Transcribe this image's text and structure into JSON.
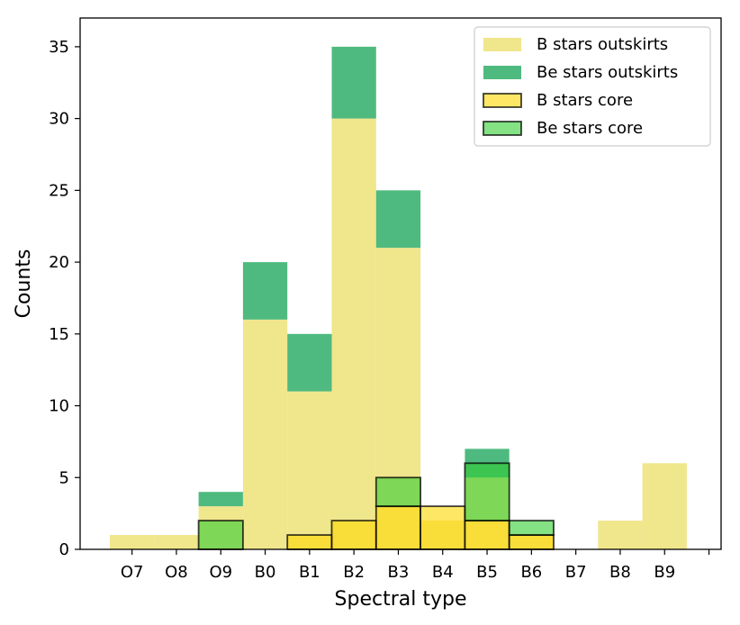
{
  "chart_data": {
    "type": "bar",
    "title": "",
    "xlabel": "Spectral type",
    "ylabel": "Counts",
    "categories": [
      "O7",
      "O8",
      "O9",
      "B0",
      "B1",
      "B2",
      "B3",
      "B4",
      "B5",
      "B6",
      "B7",
      "B8",
      "B9"
    ],
    "ylim": [
      0,
      37
    ],
    "yticks": [
      0,
      5,
      10,
      15,
      20,
      25,
      30,
      35
    ],
    "grid": false,
    "legend_position": "top-right",
    "series": [
      {
        "name": "B stars outskirts",
        "values": [
          1,
          1,
          3,
          16,
          11,
          30,
          21,
          2,
          5,
          1,
          0,
          2,
          6
        ],
        "color": "#f0e68c",
        "alpha": 1.0,
        "edge": "none"
      },
      {
        "name": "Be stars outskirts",
        "values": [
          0,
          0,
          1,
          4,
          4,
          5,
          4,
          0,
          2,
          0,
          0,
          0,
          0
        ],
        "color": "#3cb371",
        "alpha": 0.9,
        "edge": "none",
        "stacked_on": "B stars outskirts"
      },
      {
        "name": "B stars core",
        "values": [
          0,
          0,
          0,
          0,
          1,
          2,
          3,
          3,
          2,
          1,
          0,
          0,
          0
        ],
        "color": "#ffd700",
        "alpha": 0.6,
        "edge": "#000000"
      },
      {
        "name": "Be stars core",
        "values": [
          0,
          0,
          2,
          0,
          0,
          0,
          2,
          0,
          4,
          1,
          0,
          0,
          0
        ],
        "color": "#32cd32",
        "alpha": 0.6,
        "edge": "#000000",
        "stacked_on": "B stars core"
      }
    ]
  }
}
